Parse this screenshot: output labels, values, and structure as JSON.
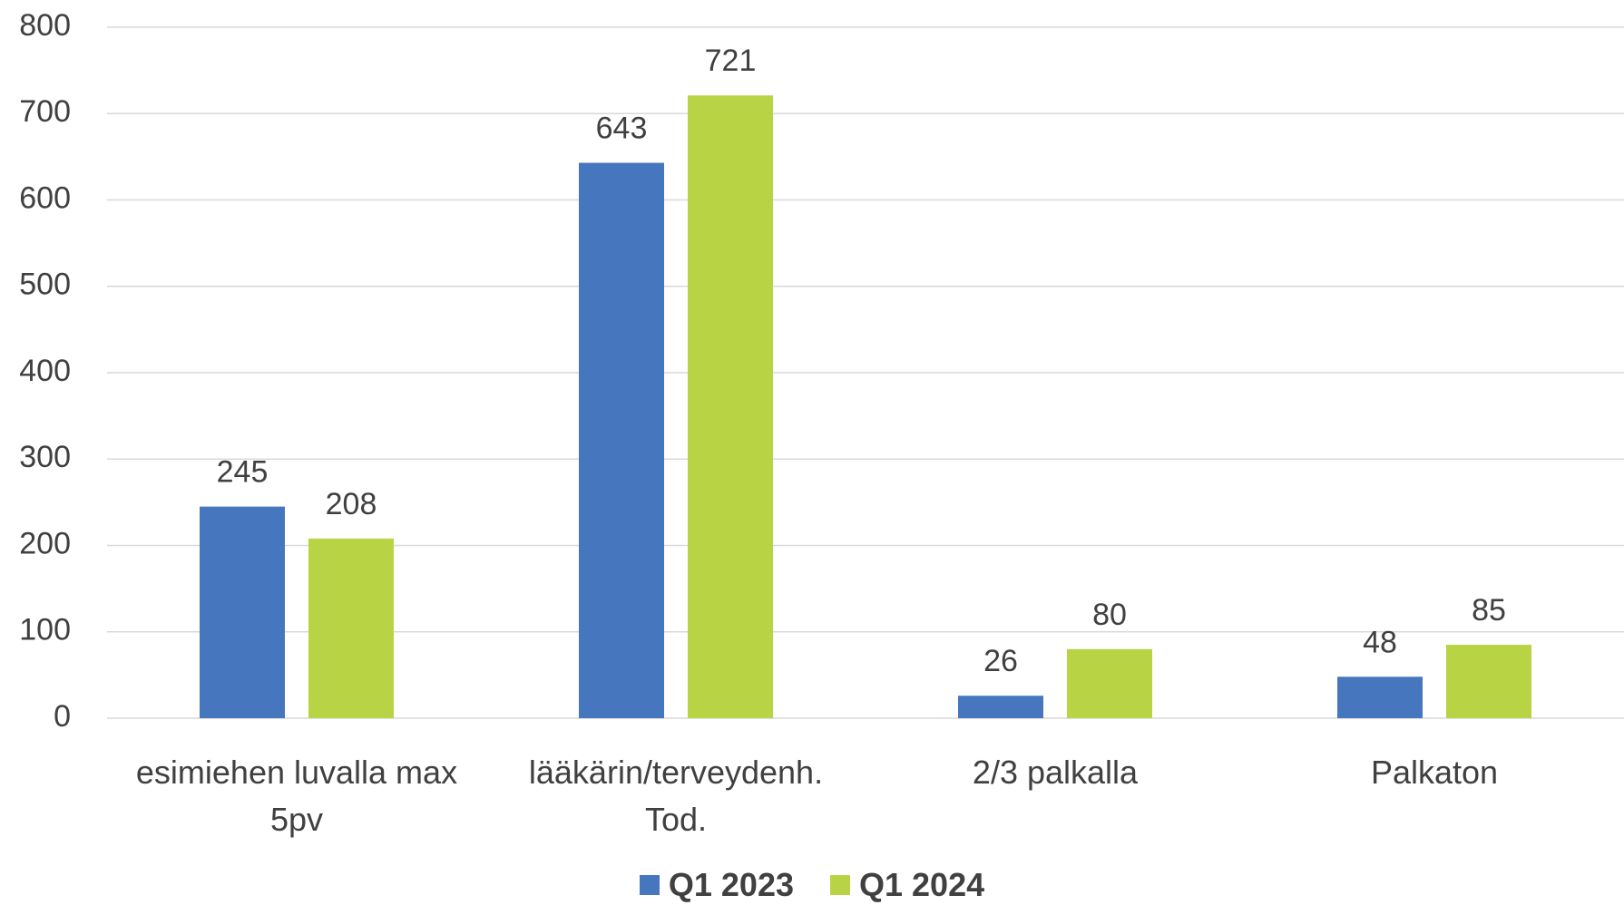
{
  "chart_data": {
    "type": "bar",
    "categories": [
      "esimiehen luvalla max 5pv",
      "lääkärin/terveydenh. Tod.",
      "2/3 palkalla",
      "Palkaton"
    ],
    "series": [
      {
        "name": "Q1 2023",
        "color": "#4677be",
        "values": [
          245,
          643,
          26,
          48
        ]
      },
      {
        "name": "Q1 2024",
        "color": "#b8d445",
        "values": [
          208,
          721,
          80,
          85
        ]
      }
    ],
    "ylim": [
      0,
      800
    ],
    "yticks": [
      0,
      100,
      200,
      300,
      400,
      500,
      600,
      700,
      800
    ],
    "grid": true,
    "legend": "bottom"
  }
}
